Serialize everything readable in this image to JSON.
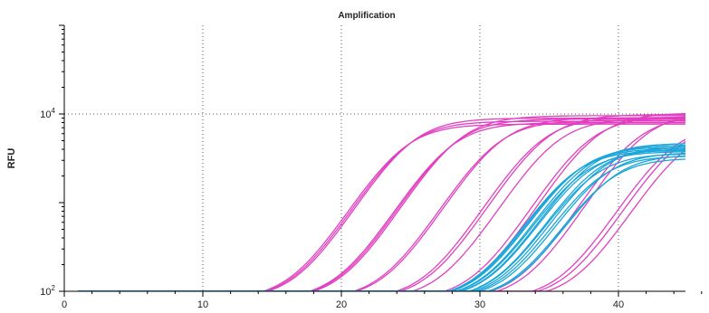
{
  "chart_data": {
    "type": "line",
    "title": "Amplification",
    "xlabel": "",
    "ylabel": "RFU",
    "xlim": [
      0,
      46
    ],
    "ylim": [
      100,
      100000
    ],
    "yscale": "log",
    "grid": true,
    "legend": "none",
    "x_ticks": [
      0,
      10,
      20,
      30,
      40
    ],
    "y_ticks": [
      {
        "value": 100,
        "base": "10",
        "exp": "2"
      },
      {
        "value": 10000,
        "base": "10",
        "exp": "4"
      }
    ],
    "colors": {
      "target_a": "#e040c0",
      "target_b": "#1aa6d8"
    },
    "series": [
      {
        "group": "target_a",
        "ct": 16.6,
        "plateau": 7600
      },
      {
        "group": "target_a",
        "ct": 16.9,
        "plateau": 8200
      },
      {
        "group": "target_a",
        "ct": 17.2,
        "plateau": 8900
      },
      {
        "group": "target_a",
        "ct": 20.0,
        "plateau": 7900
      },
      {
        "group": "target_a",
        "ct": 20.3,
        "plateau": 8700
      },
      {
        "group": "target_a",
        "ct": 20.6,
        "plateau": 9500
      },
      {
        "group": "target_a",
        "ct": 23.3,
        "plateau": 8400
      },
      {
        "group": "target_a",
        "ct": 23.6,
        "plateau": 9000
      },
      {
        "group": "target_a",
        "ct": 26.5,
        "plateau": 9100
      },
      {
        "group": "target_a",
        "ct": 26.9,
        "plateau": 9800
      },
      {
        "group": "target_a",
        "ct": 27.6,
        "plateau": 8800
      },
      {
        "group": "target_a",
        "ct": 30.0,
        "plateau": 9300
      },
      {
        "group": "target_a",
        "ct": 30.5,
        "plateau": 10200
      },
      {
        "group": "target_a",
        "ct": 33.4,
        "plateau": 9600
      },
      {
        "group": "target_a",
        "ct": 34.0,
        "plateau": 10500
      },
      {
        "group": "target_a",
        "ct": 36.0,
        "plateau": 7600
      },
      {
        "group": "target_a",
        "ct": 36.5,
        "plateau": 8000
      },
      {
        "group": "target_a",
        "ct": 37.0,
        "plateau": 7300
      },
      {
        "group": "target_b",
        "ct": 28.8,
        "plateau": 3800
      },
      {
        "group": "target_b",
        "ct": 29.0,
        "plateau": 4000
      },
      {
        "group": "target_b",
        "ct": 29.2,
        "plateau": 4200
      },
      {
        "group": "target_b",
        "ct": 29.4,
        "plateau": 3700
      },
      {
        "group": "target_b",
        "ct": 29.6,
        "plateau": 4400
      },
      {
        "group": "target_b",
        "ct": 29.8,
        "plateau": 3900
      },
      {
        "group": "target_b",
        "ct": 30.0,
        "plateau": 4600
      },
      {
        "group": "target_b",
        "ct": 30.2,
        "plateau": 3500
      },
      {
        "group": "target_b",
        "ct": 30.4,
        "plateau": 4100
      },
      {
        "group": "target_b",
        "ct": 30.6,
        "plateau": 3300
      },
      {
        "group": "target_b",
        "ct": 30.8,
        "plateau": 4300
      },
      {
        "group": "target_b",
        "ct": 31.0,
        "plateau": 3600
      },
      {
        "group": "target_b",
        "ct": 31.3,
        "plateau": 3100
      },
      {
        "group": "target_b",
        "ct": 31.6,
        "plateau": 3400
      }
    ]
  }
}
